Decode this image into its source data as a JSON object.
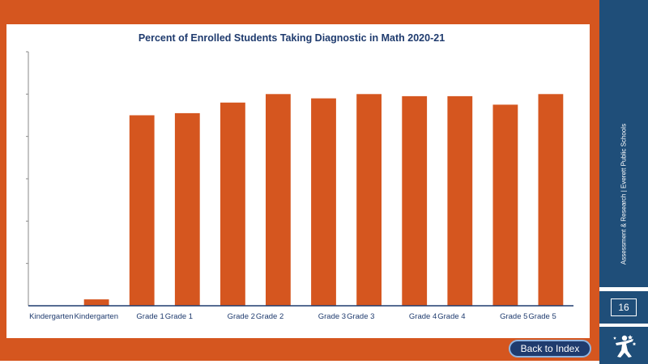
{
  "colors": {
    "frame": "#d5561f",
    "bar": "#d5561f",
    "sidebar": "#1f4e79",
    "title": "#1f3b6e",
    "button": "#1f3b6e",
    "axis_text": "#1f3b6e"
  },
  "sidebar": {
    "caption": "Assessment & Research | Everett Public Schools",
    "page_number": "16",
    "logo_icon": "figure-logo-icon"
  },
  "nav": {
    "back_label": "Back to Index"
  },
  "chart_data": {
    "type": "bar",
    "title": "Percent of Enrolled Students Taking Diagnostic in Math 2020-21",
    "xlabel": "",
    "ylabel": "",
    "categories": [
      "Kindergarten",
      "Kindergarten",
      "Grade 1",
      "Grade 1",
      "Grade 2",
      "Grade 2",
      "Grade 3",
      "Grade 3",
      "Grade 4",
      "Grade 4",
      "Grade 5",
      "Grade 5"
    ],
    "values": [
      0,
      3,
      90,
      91,
      96,
      100,
      98,
      100,
      99,
      99,
      95,
      100
    ],
    "ylim": [
      0,
      120
    ],
    "y_gridlines": 6,
    "grid": false,
    "y_tick_labels_visible": false,
    "legend": "none"
  }
}
